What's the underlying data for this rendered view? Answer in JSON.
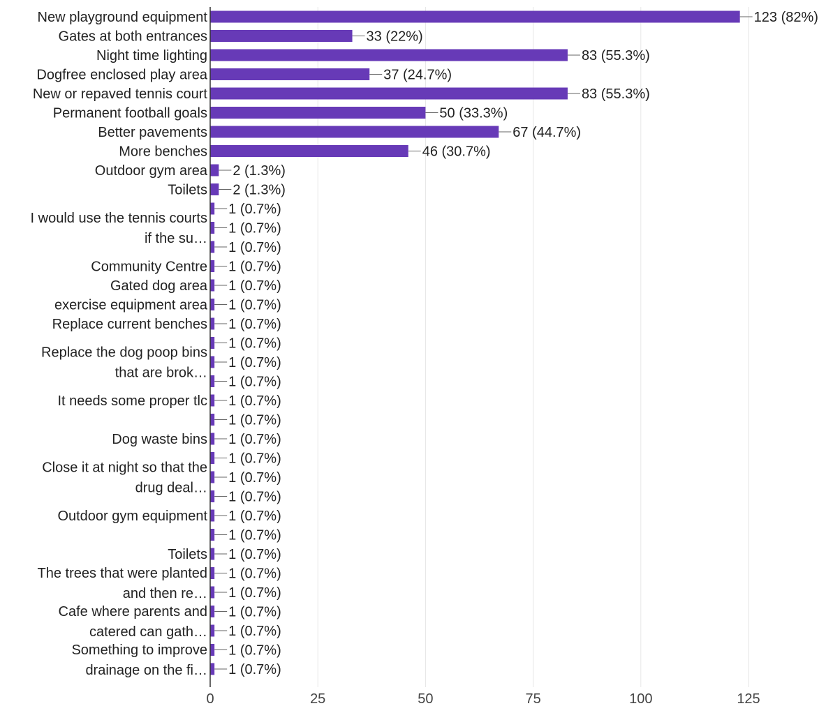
{
  "chart_data": {
    "type": "bar",
    "orientation": "horizontal",
    "bar_color": "#673ab7",
    "grid": true,
    "xlim": [
      0,
      125
    ],
    "xticks": [
      0,
      25,
      50,
      75,
      100,
      125
    ],
    "xtick_labels": [
      "0",
      "25",
      "50",
      "75",
      "100",
      "125"
    ],
    "values": [
      123,
      33,
      83,
      37,
      83,
      50,
      67,
      46,
      2,
      2,
      1,
      1,
      1,
      1,
      1,
      1,
      1,
      1,
      1,
      1,
      1,
      1,
      1,
      1,
      1,
      1,
      1,
      1,
      1,
      1,
      1,
      1,
      1,
      1,
      1
    ],
    "value_labels": [
      "123 (82%)",
      "33 (22%)",
      "83 (55.3%)",
      "37 (24.7%)",
      "83 (55.3%)",
      "50 (33.3%)",
      "67 (44.7%)",
      "46 (30.7%)",
      "2 (1.3%)",
      "2 (1.3%)",
      "1 (0.7%)",
      "1 (0.7%)",
      "1 (0.7%)",
      "1 (0.7%)",
      "1 (0.7%)",
      "1 (0.7%)",
      "1 (0.7%)",
      "1 (0.7%)",
      "1 (0.7%)",
      "1 (0.7%)",
      "1 (0.7%)",
      "1 (0.7%)",
      "1 (0.7%)",
      "1 (0.7%)",
      "1 (0.7%)",
      "1 (0.7%)",
      "1 (0.7%)",
      "1 (0.7%)",
      "1 (0.7%)",
      "1 (0.7%)",
      "1 (0.7%)",
      "1 (0.7%)",
      "1 (0.7%)",
      "1 (0.7%)",
      "1 (0.7%)"
    ],
    "category_labels": [
      {
        "row": 0,
        "span": 1,
        "lines": [
          "New playground equipment"
        ]
      },
      {
        "row": 1,
        "span": 1,
        "lines": [
          "Gates at both entrances"
        ]
      },
      {
        "row": 2,
        "span": 1,
        "lines": [
          "Night time lighting"
        ]
      },
      {
        "row": 3,
        "span": 1,
        "lines": [
          "Dogfree enclosed play area"
        ]
      },
      {
        "row": 4,
        "span": 1,
        "lines": [
          "New or repaved tennis court"
        ]
      },
      {
        "row": 5,
        "span": 1,
        "lines": [
          "Permanent football goals"
        ]
      },
      {
        "row": 6,
        "span": 1,
        "lines": [
          "Better pavements"
        ]
      },
      {
        "row": 7,
        "span": 1,
        "lines": [
          "More benches"
        ]
      },
      {
        "row": 8,
        "span": 1,
        "lines": [
          "Outdoor gym area"
        ]
      },
      {
        "row": 9,
        "span": 1,
        "lines": [
          "Toilets"
        ]
      },
      {
        "row": 10,
        "span": 3,
        "lines": [
          "I would use the tennis courts",
          "if the su…"
        ]
      },
      {
        "row": 13,
        "span": 1,
        "lines": [
          "Community Centre"
        ]
      },
      {
        "row": 14,
        "span": 1,
        "lines": [
          "Gated dog area"
        ]
      },
      {
        "row": 15,
        "span": 1,
        "lines": [
          "exercise equipment area"
        ]
      },
      {
        "row": 16,
        "span": 1,
        "lines": [
          "Replace current benches"
        ]
      },
      {
        "row": 17,
        "span": 3,
        "lines": [
          "Replace the dog poop bins",
          "that are brok…"
        ]
      },
      {
        "row": 20,
        "span": 1,
        "lines": [
          "It needs some proper tlc"
        ]
      },
      {
        "row": 22,
        "span": 1,
        "lines": [
          "Dog waste bins"
        ]
      },
      {
        "row": 23,
        "span": 3,
        "lines": [
          "Close it at night so that the",
          "drug deal…"
        ]
      },
      {
        "row": 26,
        "span": 1,
        "lines": [
          "Outdoor gym equipment"
        ]
      },
      {
        "row": 28,
        "span": 1,
        "lines": [
          "Toilets"
        ]
      },
      {
        "row": 29,
        "span": 2,
        "lines": [
          "The trees that were planted",
          "and then re…"
        ]
      },
      {
        "row": 31,
        "span": 2,
        "lines": [
          "Cafe where parents and",
          "catered can gath…"
        ]
      },
      {
        "row": 33,
        "span": 2,
        "lines": [
          "Something to improve",
          "drainage on the fi…"
        ]
      }
    ]
  }
}
